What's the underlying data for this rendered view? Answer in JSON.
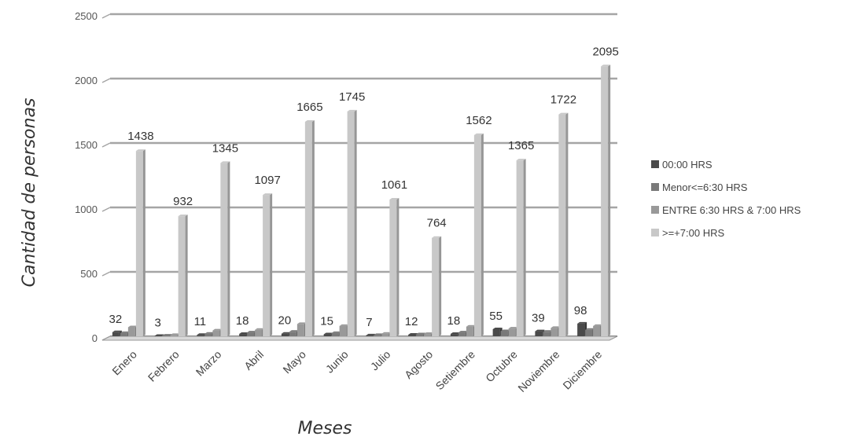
{
  "chart_data": {
    "type": "bar",
    "xlabel": "Meses",
    "ylabel": "Cantidad de personas",
    "ylim": [
      0,
      2500
    ],
    "yticks": [
      0,
      500,
      1000,
      1500,
      2000,
      2500
    ],
    "grid": true,
    "legend_position": "right",
    "categories": [
      "Enero",
      "Febrero",
      "Marzo",
      "Abril",
      "Mayo",
      "Junio",
      "Julio",
      "Agosto",
      "Setiembre",
      "Octubre",
      "Noviembre",
      "Diciembre"
    ],
    "series": [
      {
        "name": "00:00 HRS",
        "color": "#4a4a4a",
        "values": [
          32,
          3,
          11,
          18,
          20,
          15,
          7,
          12,
          18,
          55,
          39,
          98
        ]
      },
      {
        "name": "Menor<=6:30 HRS",
        "color": "#7a7a7a",
        "values": [
          25,
          5,
          20,
          30,
          35,
          25,
          10,
          15,
          30,
          40,
          35,
          50
        ]
      },
      {
        "name": "ENTRE 6:30 HRS & 7:00 HRS",
        "color": "#999999",
        "values": [
          70,
          10,
          45,
          50,
          95,
          80,
          20,
          18,
          75,
          60,
          65,
          80
        ]
      },
      {
        "name": ">=+7:00 HRS",
        "color": "#c8c8c8",
        "values": [
          1438,
          932,
          1345,
          1097,
          1665,
          1745,
          1061,
          764,
          1562,
          1365,
          1722,
          2095
        ]
      }
    ],
    "data_labels": [
      "32",
      "3",
      "11",
      "18",
      "20",
      "15",
      "7",
      "12",
      "18",
      "55",
      "39",
      "98"
    ],
    "top_labels": [
      "1438",
      "932",
      "1345",
      "1097",
      "1665",
      "1745",
      "1061",
      "764",
      "1562",
      "1365",
      "1722",
      "2095"
    ]
  }
}
